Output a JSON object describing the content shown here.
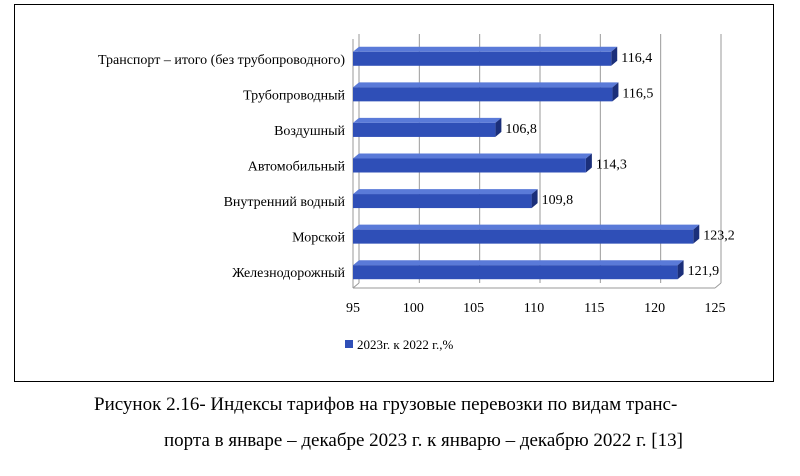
{
  "chart_data": {
    "type": "bar",
    "orientation": "horizontal",
    "categories": [
      "Транспорт – итого (без трубопроводного)",
      "Трубопроводный",
      "Воздушный",
      "Автомобильный",
      "Внутренний водный",
      "Морской",
      "Железнодорожный"
    ],
    "value_labels": [
      "116,4",
      "116,5",
      "106,8",
      "114,3",
      "109,8",
      "123,2",
      "121,9"
    ],
    "series": [
      {
        "name": "2023г. к 2022 г.,%",
        "values": [
          116.4,
          116.5,
          106.8,
          114.3,
          109.8,
          123.2,
          121.9
        ]
      }
    ],
    "xlim": [
      95,
      125
    ],
    "xticks": [
      95,
      100,
      105,
      110,
      115,
      120,
      125
    ],
    "grid": "vertical",
    "legend": "bottom",
    "colors": {
      "bar_front": "#2f4fb7",
      "bar_top": "#5a7ad8",
      "bar_side": "#1b2f7a",
      "grid": "#9a9a9a"
    }
  },
  "caption": {
    "line1": "Рисунок 2.16- Индексы тарифов на грузовые перевозки по видам транс-",
    "line2": "порта в январе – декабре 2023 г. к январю – декабрю 2022 г. [13]"
  }
}
